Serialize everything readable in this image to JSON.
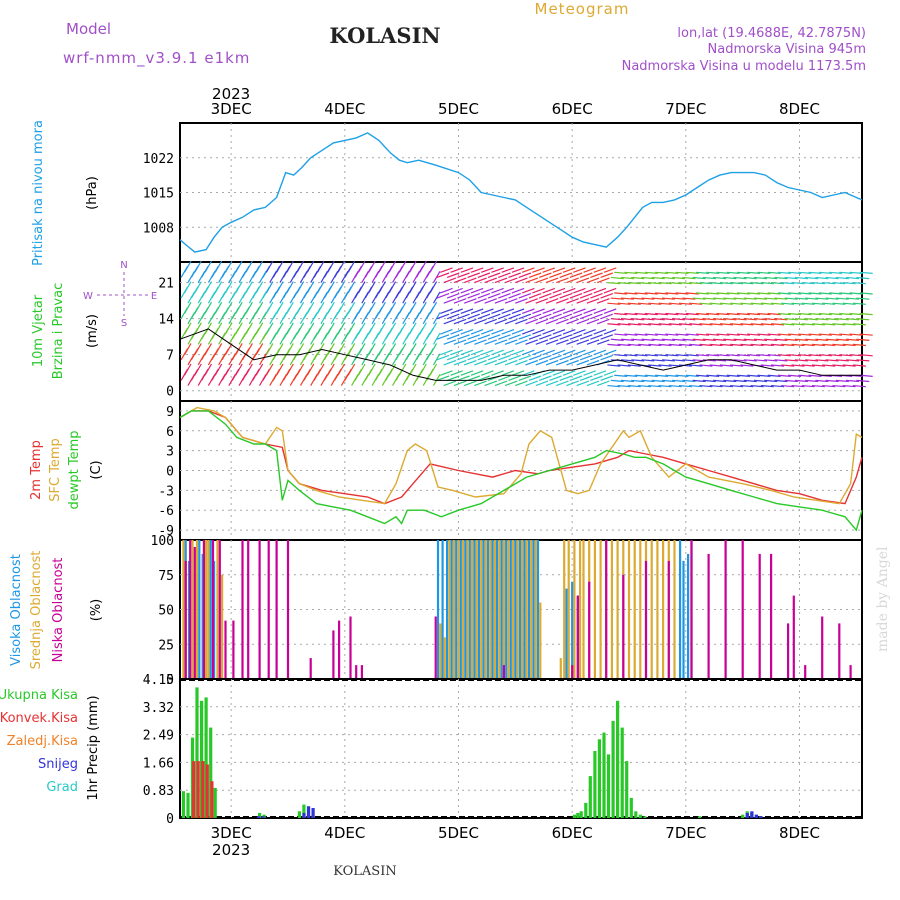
{
  "header": {
    "model_label": "Model",
    "model_name": "wrf-nmm_v3.9.1 e1km",
    "station": "KOLASIN",
    "meteogram": "Meteogram",
    "coords": "lon,lat (19.4688E, 42.7875N)",
    "elevation": "Nadmorska Visina 945m",
    "model_elevation": "Nadmorska Visina u modelu 1173.5m",
    "footer_station": "KOLASIN",
    "watermark": "made by Angel"
  },
  "colors": {
    "pressure": "#1ea0e6",
    "temp2m": "#e63232",
    "sfc": "#dcaa32",
    "dewpt": "#28c828",
    "high_cloud": "#1e96e6",
    "mid_cloud": "#dcaa32",
    "low_cloud": "#c80096",
    "total_precip": "#28c828",
    "convective": "#e63232",
    "freezing": "#f08228",
    "snow": "#3232dc",
    "graupel": "#28c8c8",
    "header_purple": "#a050c8",
    "meteogram_gold": "#dcaa32"
  },
  "chart_data": [
    {
      "type": "line",
      "title": "",
      "ylabel_lines": [
        "Pritisak na nivou mora",
        "(hPa)"
      ],
      "xlabel": "",
      "xlim": [
        0.55,
        6.55
      ],
      "x_tick_labels": [
        "3DEC",
        "4DEC",
        "5DEC",
        "6DEC",
        "7DEC",
        "8DEC"
      ],
      "x_year_label": "2023",
      "y_ticks": [
        1008,
        1015,
        1022
      ],
      "ylim": [
        1001,
        1029
      ],
      "series": [
        {
          "color_key": "pressure",
          "x": [
            0.55,
            0.6,
            0.68,
            0.78,
            0.85,
            0.92,
            1.0,
            1.1,
            1.2,
            1.3,
            1.4,
            1.48,
            1.55,
            1.62,
            1.7,
            1.8,
            1.9,
            2.0,
            2.1,
            2.2,
            2.3,
            2.4,
            2.48,
            2.55,
            2.65,
            2.8,
            3.0,
            3.1,
            3.2,
            3.3,
            3.4,
            3.5,
            3.6,
            3.7,
            3.8,
            3.9,
            4.0,
            4.1,
            4.2,
            4.3,
            4.4,
            4.48,
            4.55,
            4.62,
            4.7,
            4.8,
            4.9,
            5.0,
            5.1,
            5.2,
            5.3,
            5.4,
            5.5,
            5.6,
            5.7,
            5.8,
            5.9,
            6.0,
            6.1,
            6.2,
            6.3,
            6.4,
            6.5,
            6.55
          ],
          "values": [
            1005.5,
            1004.5,
            1003,
            1003.5,
            1006,
            1008,
            1009,
            1010,
            1011.5,
            1012,
            1014,
            1019,
            1018.5,
            1020,
            1022,
            1023.5,
            1025,
            1025.5,
            1026,
            1027,
            1025.5,
            1023,
            1021.5,
            1021,
            1021.5,
            1020.5,
            1019,
            1017.5,
            1015,
            1014.5,
            1014,
            1013.5,
            1012,
            1010.5,
            1009,
            1007.5,
            1006,
            1005,
            1004.5,
            1004,
            1006,
            1008,
            1010,
            1012,
            1013,
            1013,
            1013.5,
            1014.5,
            1016,
            1017.5,
            1018.5,
            1019,
            1019,
            1019,
            1018.5,
            1017,
            1016,
            1015.5,
            1015,
            1014,
            1014.5,
            1015,
            1014,
            1013.5
          ]
        }
      ]
    },
    {
      "type": "line",
      "title": "",
      "ylabel_lines": [
        "10m Vjetar",
        "Brzina i Pravac",
        "(m/s)"
      ],
      "compass": {
        "N": "N",
        "W": "W",
        "E": "E",
        "S": "S"
      },
      "xlabel": "",
      "xlim": [
        0.55,
        6.55
      ],
      "y_ticks": [
        0,
        7,
        14,
        21
      ],
      "ylim": [
        -2,
        25
      ],
      "series": [
        {
          "name": "speed",
          "x": [
            0.55,
            0.8,
            1.0,
            1.2,
            1.4,
            1.6,
            1.8,
            2.0,
            2.2,
            2.4,
            2.6,
            2.8,
            3.0,
            3.2,
            3.4,
            3.6,
            3.8,
            4.0,
            4.2,
            4.4,
            4.6,
            4.8,
            5.0,
            5.2,
            5.4,
            5.6,
            5.8,
            6.0,
            6.2,
            6.4,
            6.55
          ],
          "values": [
            10,
            12,
            9,
            6,
            7,
            7,
            8,
            7,
            6,
            5,
            3,
            2,
            2,
            2,
            3,
            3,
            4,
            4,
            5,
            6,
            5,
            4,
            5,
            6,
            6,
            5,
            4,
            4,
            3,
            3,
            3
          ]
        }
      ]
    },
    {
      "type": "line",
      "title": "",
      "ylabel_lines": [
        "2m Temp",
        "SFC Temp",
        "dewpt Temp",
        "(C)"
      ],
      "xlabel": "",
      "xlim": [
        0.55,
        6.55
      ],
      "y_ticks": [
        -9,
        -6,
        -3,
        0,
        3,
        6,
        9
      ],
      "ylim": [
        -10.5,
        10.5
      ],
      "series": [
        {
          "color_key": "temp2m",
          "x": [
            0.55,
            0.65,
            0.8,
            0.95,
            1.1,
            1.3,
            1.45,
            1.5,
            1.6,
            1.8,
            2.0,
            2.2,
            2.35,
            2.5,
            2.6,
            2.75,
            3.0,
            3.3,
            3.5,
            3.7,
            3.8,
            4.0,
            4.2,
            4.4,
            4.5,
            4.65,
            4.8,
            5.0,
            5.2,
            5.4,
            5.6,
            5.8,
            6.0,
            6.2,
            6.4,
            6.5,
            6.55
          ],
          "values": [
            8,
            9,
            9,
            8,
            5,
            4,
            3.5,
            0,
            -2,
            -3,
            -3.5,
            -4,
            -5,
            -4,
            -2,
            1,
            0,
            -1,
            0,
            -0.5,
            0,
            0.5,
            1,
            2,
            3,
            2.5,
            2,
            1,
            0,
            -1,
            -2,
            -3,
            -3.5,
            -4.5,
            -5,
            -1,
            2
          ]
        },
        {
          "color_key": "sfc",
          "x": [
            0.55,
            0.7,
            0.85,
            0.95,
            1.1,
            1.3,
            1.4,
            1.45,
            1.5,
            1.6,
            1.75,
            1.95,
            2.15,
            2.35,
            2.45,
            2.55,
            2.62,
            2.72,
            2.82,
            2.95,
            3.15,
            3.4,
            3.55,
            3.62,
            3.72,
            3.82,
            3.95,
            4.05,
            4.15,
            4.25,
            4.45,
            4.5,
            4.6,
            4.7,
            4.85,
            5.0,
            5.2,
            5.5,
            5.75,
            5.95,
            6.15,
            6.35,
            6.45,
            6.5,
            6.55
          ],
          "values": [
            8,
            9.5,
            9,
            8,
            5,
            4,
            6.5,
            6,
            0,
            -2,
            -3,
            -4,
            -4.5,
            -5,
            -2,
            3,
            4,
            3,
            -2.5,
            -3,
            -4,
            -3.5,
            -0.5,
            4,
            6,
            5,
            -3,
            -3.5,
            -3,
            1,
            6,
            5,
            6,
            2,
            -1,
            1,
            -1,
            -2,
            -3,
            -4,
            -4.5,
            -5,
            -2,
            5.5,
            5
          ]
        },
        {
          "color_key": "dewpt",
          "x": [
            0.55,
            0.65,
            0.8,
            0.95,
            1.05,
            1.2,
            1.3,
            1.4,
            1.45,
            1.5,
            1.6,
            1.75,
            1.9,
            2.05,
            2.2,
            2.35,
            2.45,
            2.5,
            2.55,
            2.7,
            2.85,
            3.0,
            3.2,
            3.4,
            3.6,
            3.8,
            4.0,
            4.2,
            4.3,
            4.45,
            4.55,
            4.65,
            4.8,
            5.0,
            5.2,
            5.4,
            5.6,
            5.8,
            6.0,
            6.2,
            6.3,
            6.4,
            6.5,
            6.55
          ],
          "values": [
            8,
            9,
            9,
            7,
            5,
            4,
            4,
            3,
            -4.5,
            -1.5,
            -3,
            -5,
            -5.5,
            -6,
            -7,
            -8,
            -7,
            -8,
            -6,
            -6,
            -7,
            -6,
            -5,
            -3,
            -1,
            0,
            1,
            2,
            3,
            2.5,
            2,
            2,
            1,
            -1,
            -2,
            -3,
            -4,
            -5,
            -5.5,
            -6,
            -6.5,
            -7,
            -9,
            -6
          ]
        }
      ]
    },
    {
      "type": "bar",
      "title": "",
      "ylabel_lines": [
        "Visoka Oblacnost",
        "Srednja Oblacnost",
        "Niska Oblacnost",
        "(%)"
      ],
      "xlabel": "",
      "xlim": [
        0.55,
        6.55
      ],
      "y_ticks": [
        0,
        25,
        50,
        75,
        100
      ],
      "ylim": [
        0,
        100
      ],
      "series": [
        {
          "name": "Visoka Oblacnost",
          "color_key": "high_cloud",
          "x": [
            0.6,
            0.63,
            0.72,
            0.75,
            0.82,
            0.85,
            2.82,
            2.86,
            2.9,
            2.94,
            2.98,
            3.02,
            3.06,
            3.1,
            3.14,
            3.18,
            3.22,
            3.26,
            3.3,
            3.34,
            3.38,
            3.42,
            3.46,
            3.5,
            3.54,
            3.58,
            3.62,
            3.66,
            3.7,
            3.95,
            4.0,
            4.05,
            4.95,
            4.98,
            5.02,
            5.05
          ],
          "values": [
            100,
            85,
            100,
            90,
            100,
            85,
            100,
            100,
            100,
            100,
            100,
            100,
            100,
            100,
            100,
            100,
            100,
            100,
            100,
            100,
            100,
            100,
            100,
            100,
            100,
            100,
            100,
            100,
            100,
            65,
            70,
            60,
            100,
            85,
            90,
            100
          ]
        },
        {
          "name": "Srednja Oblacnost",
          "color_key": "mid_cloud",
          "x": [
            0.58,
            0.66,
            0.7,
            0.78,
            0.8,
            0.88,
            0.92,
            2.84,
            2.88,
            2.92,
            2.96,
            3.0,
            3.04,
            3.08,
            3.12,
            3.16,
            3.2,
            3.24,
            3.28,
            3.32,
            3.36,
            3.4,
            3.44,
            3.48,
            3.52,
            3.56,
            3.6,
            3.64,
            3.68,
            3.72,
            3.9,
            3.93,
            3.97,
            4.02,
            4.07,
            4.1,
            4.15,
            4.2,
            4.25,
            4.3,
            4.35,
            4.4,
            4.45,
            4.5,
            4.55,
            4.6,
            4.65,
            4.7,
            4.75,
            4.8,
            4.85,
            4.9
          ],
          "values": [
            100,
            100,
            100,
            100,
            100,
            100,
            75,
            40,
            30,
            100,
            100,
            100,
            100,
            100,
            100,
            100,
            100,
            100,
            100,
            100,
            100,
            100,
            100,
            100,
            100,
            100,
            100,
            100,
            100,
            55,
            15,
            100,
            100,
            100,
            100,
            100,
            100,
            100,
            100,
            100,
            100,
            100,
            100,
            100,
            100,
            100,
            100,
            100,
            100,
            100,
            100,
            100
          ]
        },
        {
          "name": "Niska Oblacnost",
          "color_key": "low_cloud",
          "x": [
            0.6,
            0.64,
            0.68,
            0.76,
            0.84,
            0.9,
            0.95,
            1.02,
            1.1,
            1.15,
            1.25,
            1.33,
            1.4,
            1.5,
            1.7,
            1.9,
            1.95,
            2.05,
            2.1,
            2.15,
            2.8,
            3.4,
            4.0,
            4.05,
            4.15,
            4.3,
            4.45,
            4.65,
            4.85,
            5.05,
            5.2,
            5.35,
            5.5,
            5.65,
            5.75,
            5.9,
            5.95,
            6.05,
            6.2,
            6.35,
            6.45
          ],
          "values": [
            85,
            100,
            95,
            100,
            100,
            100,
            42,
            42,
            100,
            100,
            100,
            100,
            100,
            100,
            15,
            35,
            42,
            45,
            10,
            10,
            45,
            10,
            10,
            60,
            70,
            100,
            75,
            85,
            85,
            100,
            90,
            100,
            100,
            90,
            90,
            40,
            60,
            10,
            45,
            40,
            10
          ]
        }
      ]
    },
    {
      "type": "bar",
      "title": "",
      "ylabel_lines": [
        "1hr Precip (mm)"
      ],
      "legend": [
        "Ukupna Kisa",
        "Konvek.Kisa",
        "Zaledj.Kisa",
        "Snijeg",
        "Grad"
      ],
      "xlabel": "",
      "xlim": [
        0.55,
        6.55
      ],
      "x_tick_labels": [
        "3DEC",
        "4DEC",
        "5DEC",
        "6DEC",
        "7DEC",
        "8DEC"
      ],
      "x_year_label": "2023",
      "y_ticks": [
        0,
        0.83,
        1.66,
        2.49,
        3.32,
        4.15
      ],
      "ylim": [
        0,
        4.15
      ],
      "series": [
        {
          "name": "Ukupna Kisa",
          "color_key": "total_precip",
          "x": [
            0.58,
            0.62,
            0.66,
            0.7,
            0.74,
            0.78,
            0.82,
            0.86,
            1.25,
            1.29,
            1.6,
            1.64,
            1.68,
            1.72,
            4.02,
            4.05,
            4.08,
            4.12,
            4.16,
            4.2,
            4.24,
            4.28,
            4.32,
            4.36,
            4.4,
            4.44,
            4.48,
            4.52,
            4.56,
            4.6,
            4.64,
            5.12,
            5.5,
            5.54,
            5.58,
            5.62,
            5.66
          ],
          "values": [
            0.8,
            0.75,
            2.4,
            3.9,
            3.5,
            3.6,
            2.7,
            0.9,
            0.15,
            0.1,
            0.2,
            0.4,
            0.35,
            0.1,
            0.1,
            0.15,
            0.2,
            0.45,
            1.25,
            2.0,
            2.35,
            2.55,
            1.9,
            2.9,
            3.5,
            2.7,
            1.7,
            0.6,
            0.2,
            0.1,
            0.05,
            0.05,
            0.1,
            0.2,
            0.15,
            0.1,
            0.05
          ]
        },
        {
          "name": "Konvek.Kisa",
          "color_key": "convective",
          "x": [
            0.66,
            0.7,
            0.74,
            0.78,
            0.82
          ],
          "values": [
            1.7,
            1.7,
            1.7,
            1.6,
            1.1
          ]
        },
        {
          "name": "Snijeg",
          "color_key": "snow",
          "x": [
            1.22,
            1.26,
            1.62,
            1.66,
            1.7,
            5.52,
            5.56,
            5.6,
            5.64
          ],
          "values": [
            0.05,
            0.05,
            0.15,
            0.35,
            0.3,
            0.15,
            0.2,
            0.1,
            0.05
          ]
        }
      ]
    }
  ]
}
